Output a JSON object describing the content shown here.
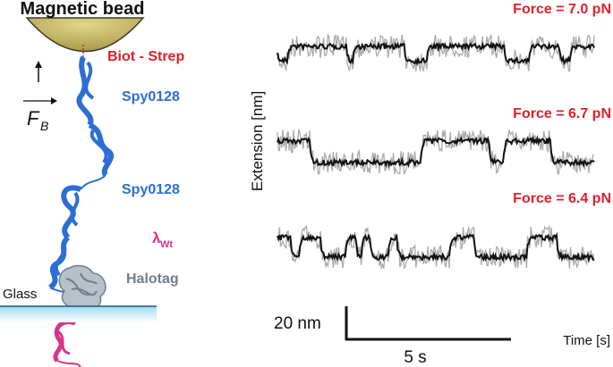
{
  "schematic": {
    "bead_label": "Magnetic bead",
    "linker_label": "Biot - Strep",
    "force_vector_label": "F",
    "force_vector_subscript": "B",
    "protein_top_label": "Spy0128",
    "protein_mid_label": "Spy0128",
    "lambda_label": "λ",
    "lambda_subscript": "Wt",
    "halotag_label": "Halotag",
    "glass_label": "Glass",
    "colors": {
      "bead": "#cfc06a",
      "linker": "#e0202a",
      "spy": "#2b6fd6",
      "lambda": "#d6358a",
      "halotag": "#6e7f8f",
      "glass": "#8fd3ea"
    }
  },
  "traces": {
    "force_labels": [
      "Force = 7.0 pN",
      "Force = 6.7 pN",
      "Force = 6.4 pN"
    ],
    "force_label_color": "#e0202a",
    "y_axis_label": "Extension [nm]",
    "x_axis_label": "Time [s]",
    "scale_y_label": "20 nm",
    "scale_x_label": "5 s",
    "raw_color": "#aaaaaa",
    "filtered_color": "#111111"
  }
}
